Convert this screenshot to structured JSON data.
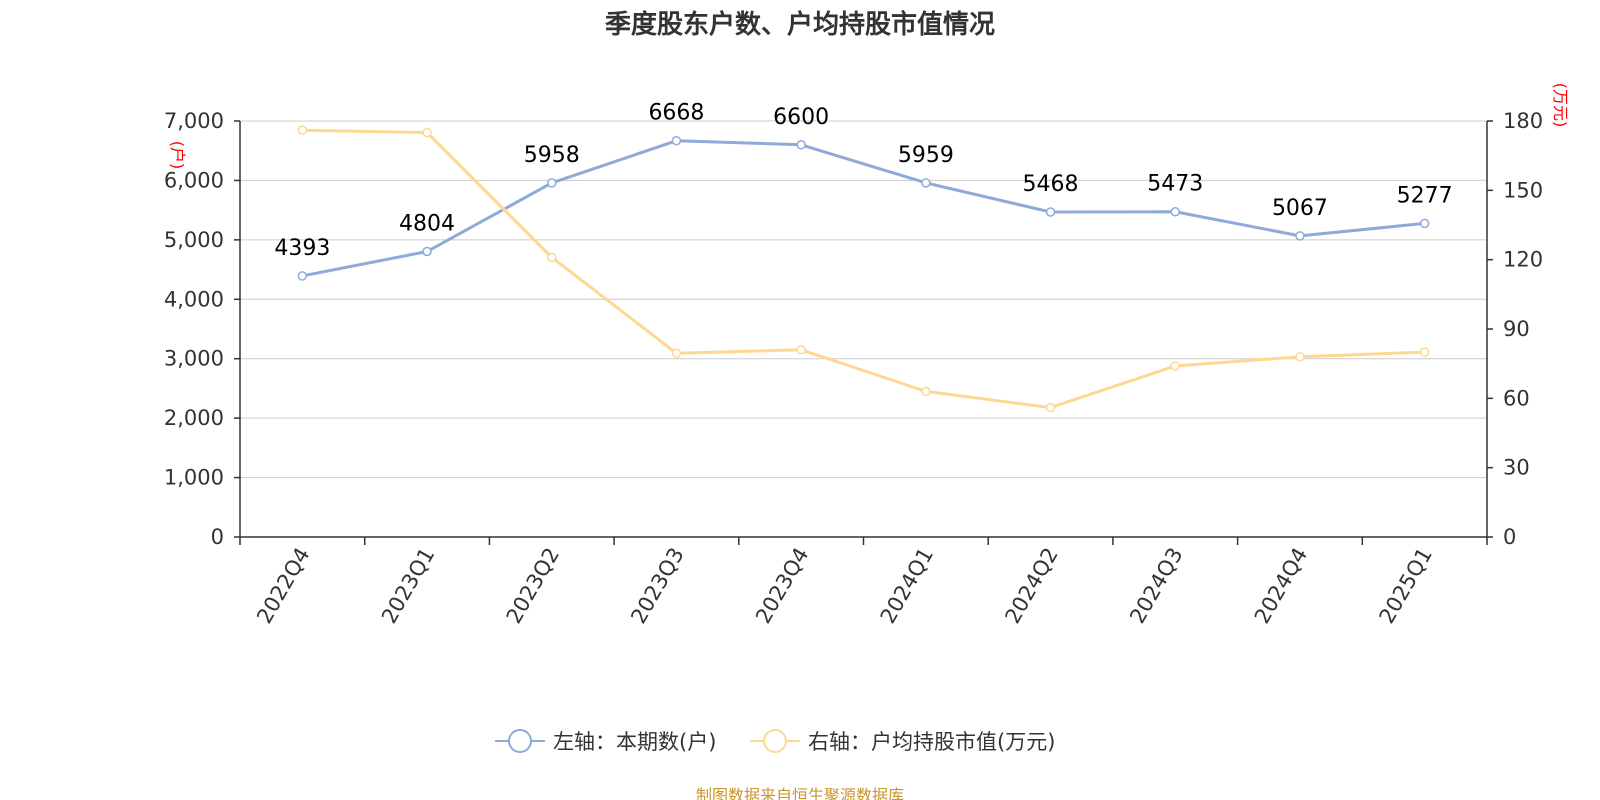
{
  "title": "季度股东户数、户均持股市值情况",
  "source": "制图数据来自恒生聚源数据库",
  "chart_data": {
    "type": "line",
    "title": "季度股东户数、户均持股市值情况",
    "categories": [
      "2022Q4",
      "2023Q1",
      "2023Q2",
      "2023Q3",
      "2023Q4",
      "2024Q1",
      "2024Q2",
      "2024Q3",
      "2024Q4",
      "2025Q1"
    ],
    "left_axis": {
      "unit_label": "(户)",
      "ylim": [
        0,
        7000
      ],
      "ticks": [
        0,
        1000,
        2000,
        3000,
        4000,
        5000,
        6000,
        7000
      ],
      "tick_labels": [
        "0",
        "1,000",
        "2,000",
        "3,000",
        "4,000",
        "5,000",
        "6,000",
        "7,000"
      ]
    },
    "right_axis": {
      "unit_label": "(万元)",
      "ylim": [
        0,
        180
      ],
      "ticks": [
        0,
        30,
        60,
        90,
        120,
        150,
        180
      ],
      "tick_labels": [
        "0",
        "30",
        "60",
        "90",
        "120",
        "150",
        "180"
      ]
    },
    "series": [
      {
        "name": "左轴：本期数(户)",
        "axis": "left",
        "color": "#8eaadb",
        "values": [
          4393,
          4804,
          5958,
          6668,
          6600,
          5959,
          5468,
          5473,
          5067,
          5277
        ],
        "show_labels": true
      },
      {
        "name": "右轴：户均持股市值(万元)",
        "axis": "right",
        "color": "#fdd891",
        "values": [
          176,
          175,
          121,
          79.5,
          81,
          63,
          56,
          74,
          78,
          80
        ],
        "show_labels": false
      }
    ],
    "grid": true,
    "legend_position": "bottom-center",
    "colors": {
      "axis": "#333333",
      "grid": "#cccccc",
      "unit_label": "#ff0000",
      "tick_text": "#333333",
      "data_label": "#000000"
    }
  }
}
